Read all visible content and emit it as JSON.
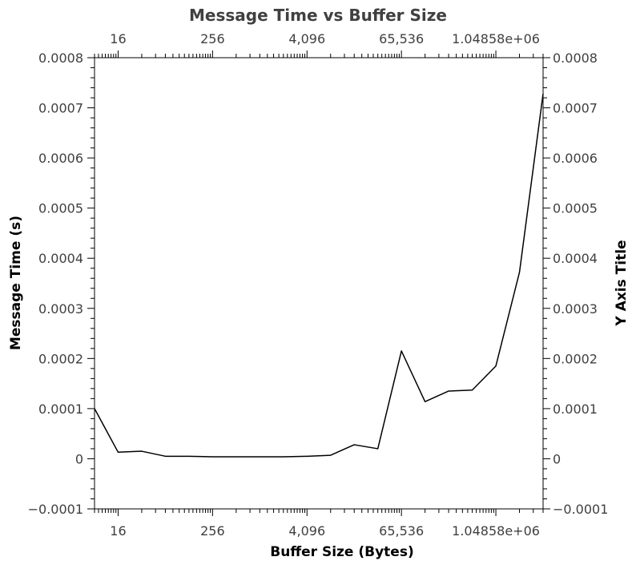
{
  "chart_data": {
    "type": "line",
    "title": "Message Time vs Buffer Size",
    "xlabel": "Buffer Size (Bytes)",
    "ylabel": "Message Time (s)",
    "y2label": "Y Axis Title",
    "x_scale": "log2",
    "xlim": [
      8,
      4194304
    ],
    "ylim": [
      -0.0001,
      0.0008
    ],
    "x_ticks": [
      {
        "value": 16,
        "label": "16"
      },
      {
        "value": 256,
        "label": "256"
      },
      {
        "value": 4096,
        "label": "4,096"
      },
      {
        "value": 65536,
        "label": "65,536"
      },
      {
        "value": 1048576,
        "label": "1.04858e+06"
      }
    ],
    "y_ticks": [
      {
        "value": -0.0001,
        "label": "−0.0001"
      },
      {
        "value": 0,
        "label": "0"
      },
      {
        "value": 0.0001,
        "label": "0.0001"
      },
      {
        "value": 0.0002,
        "label": "0.0002"
      },
      {
        "value": 0.0003,
        "label": "0.0003"
      },
      {
        "value": 0.0004,
        "label": "0.0004"
      },
      {
        "value": 0.0005,
        "label": "0.0005"
      },
      {
        "value": 0.0006,
        "label": "0.0006"
      },
      {
        "value": 0.0007,
        "label": "0.0007"
      },
      {
        "value": 0.0008,
        "label": "0.0008"
      }
    ],
    "grid": false,
    "series": [
      {
        "color": "#000000",
        "x": [
          8,
          16,
          32,
          64,
          128,
          256,
          512,
          1024,
          2048,
          4096,
          8192,
          16384,
          32768,
          65536,
          131072,
          262144,
          524288,
          1048576,
          2097152,
          4194304
        ],
        "y": [
          0.0001,
          1.3e-05,
          1.5e-05,
          5e-06,
          5e-06,
          4e-06,
          4e-06,
          4e-06,
          4e-06,
          5e-06,
          7e-06,
          2.8e-05,
          2e-05,
          0.000215,
          0.000114,
          0.000135,
          0.000137,
          0.000185,
          0.000372,
          0.000728
        ]
      }
    ]
  }
}
